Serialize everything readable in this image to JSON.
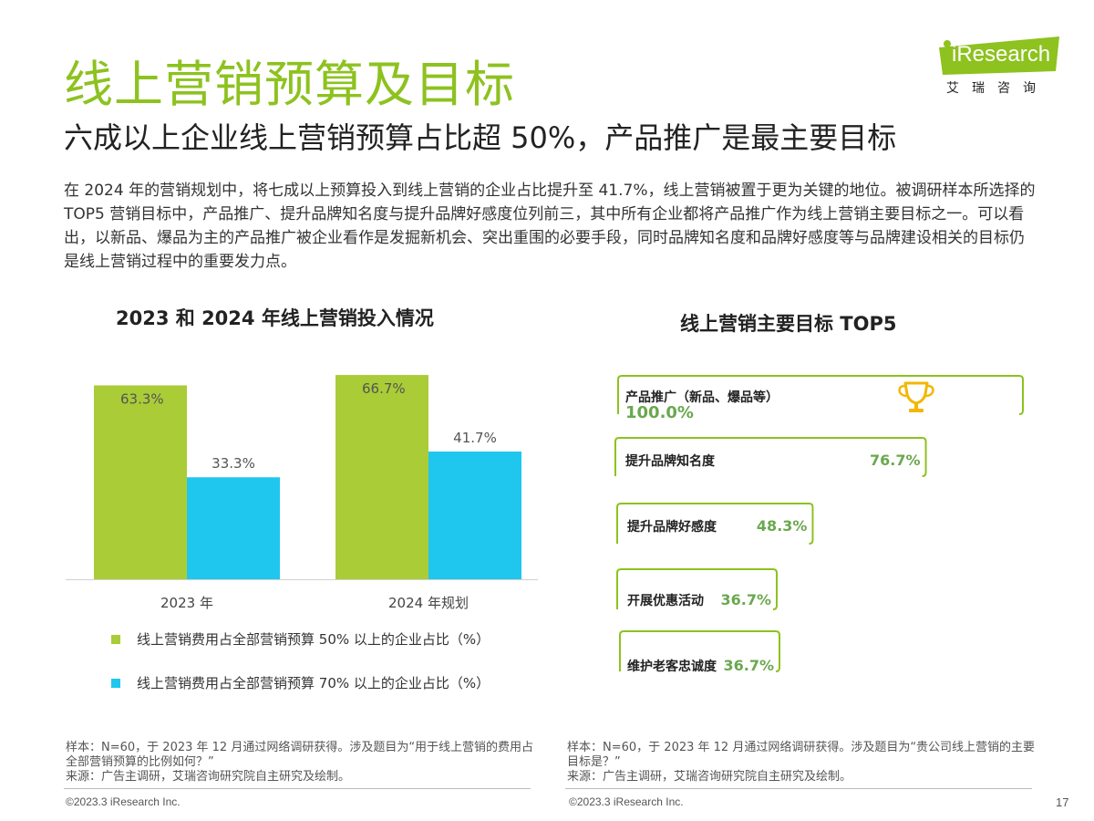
{
  "header": {
    "title": "线上营销预算及目标",
    "subtitle": "六成以上企业线上营销预算占比超 50%，产品推广是最主要目标",
    "logo_text": "iResearch",
    "logo_sub": "艾瑞咨询"
  },
  "intro": "在 2024 年的营销规划中，将七成以上预算投入到线上营销的企业占比提升至 41.7%，线上营销被置于更为关键的地位。被调研样本所选择的 TOP5 营销目标中，产品推广、提升品牌知名度与提升品牌好感度位列前三，其中所有企业都将产品推广作为线上营销主要目标之一。可以看出，以新品、爆品为主的产品推广被企业看作是发掘新机会、突出重围的必要手段，同时品牌知名度和品牌好感度等与品牌建设相关的目标仍是线上营销过程中的重要发力点。",
  "colors": {
    "accent": "#8dc21f",
    "green": "#a9cc37",
    "blue": "#1fc7ef"
  },
  "chart_data": [
    {
      "type": "bar",
      "title": "2023 和 2024 年线上营销投入情况",
      "categories": [
        "2023 年",
        "2024 年规划"
      ],
      "series": [
        {
          "name": "线上营销费用占全部营销预算 50% 以上的企业占比（%）",
          "values": [
            63.3,
            66.7
          ],
          "labels": [
            "63.3%",
            "66.7%"
          ],
          "color": "#a9cc37"
        },
        {
          "name": "线上营销费用占全部营销预算 70% 以上的企业占比（%）",
          "values": [
            33.3,
            41.7
          ],
          "labels": [
            "33.3%",
            "41.7%"
          ],
          "color": "#1fc7ef"
        }
      ],
      "ylim": [
        0,
        70
      ],
      "grid": false,
      "legend": "bottom"
    },
    {
      "type": "bar",
      "title": "线上营销主要目标 TOP5",
      "orientation": "horizontal",
      "categories": [
        "产品推广（新品、爆品等）",
        "提升品牌知名度",
        "提升品牌好感度",
        "开展优惠活动",
        "维护老客忠诚度"
      ],
      "values": [
        100.0,
        76.7,
        48.3,
        36.7,
        36.7
      ],
      "labels": [
        "100.0%",
        "76.7%",
        "48.3%",
        "36.7%",
        "36.7%"
      ],
      "xlim": [
        0,
        100
      ],
      "icon": "trophy-icon"
    }
  ],
  "notes": {
    "left": [
      "样本：N=60，于 2023 年 12 月通过网络调研获得。涉及题目为“用于线上营销的费用占全部营销预算的比例如何？”",
      "来源：广告主调研，艾瑞咨询研究院自主研究及绘制。"
    ],
    "right": [
      "样本：N=60，于 2023 年 12 月通过网络调研获得。涉及题目为“贵公司线上营销的主要目标是？”",
      "来源：广告主调研，艾瑞咨询研究院自主研究及绘制。"
    ]
  },
  "footer": {
    "copyright_left": "©2023.3 iResearch Inc.",
    "copyright_right": "©2023.3 iResearch Inc.",
    "page_number": "17"
  }
}
